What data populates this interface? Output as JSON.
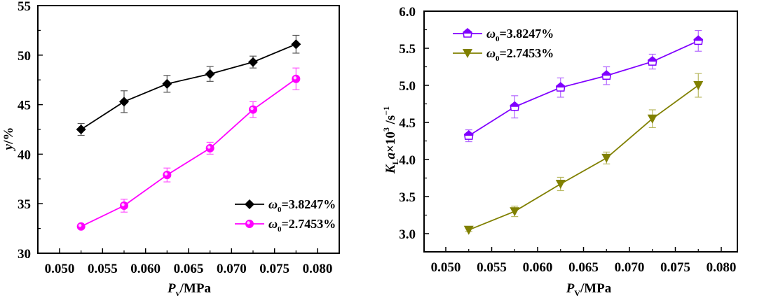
{
  "chart_data": [
    {
      "type": "line",
      "panel": "left",
      "title": "",
      "xlabel": "Pv/MPa",
      "xlabel_main": "P",
      "xlabel_sub": "v",
      "xlabel_rest": "/MPa",
      "ylabel": "y/%",
      "xlim": [
        0.0475,
        0.0825
      ],
      "ylim": [
        30,
        55
      ],
      "xticks": [
        0.05,
        0.055,
        0.06,
        0.065,
        0.07,
        0.075,
        0.08
      ],
      "xtick_labels": [
        "0.050",
        "0.055",
        "0.060",
        "0.065",
        "0.070",
        "0.075",
        "0.080"
      ],
      "yticks": [
        30,
        35,
        40,
        45,
        50,
        55
      ],
      "ytick_labels": [
        "30",
        "35",
        "40",
        "45",
        "50",
        "55"
      ],
      "grid": false,
      "legend_position": "bottom-right",
      "x": [
        0.0525,
        0.0575,
        0.0625,
        0.0675,
        0.0725,
        0.0775
      ],
      "series": [
        {
          "name": "ω0=3.8247%",
          "label_main": "ω",
          "label_sub": "0",
          "label_rest": "=3.8247%",
          "color": "#000000",
          "errcolor": "#555555",
          "marker": "diamond",
          "values": [
            42.5,
            45.3,
            47.1,
            48.1,
            49.3,
            51.1
          ],
          "errors": [
            0.6,
            1.1,
            0.85,
            0.75,
            0.6,
            0.9
          ]
        },
        {
          "name": "ω0=2.7453%",
          "label_main": "ω",
          "label_sub": "0",
          "label_rest": "=2.7453%",
          "color": "#ff00ff",
          "errcolor": "#ff55ff",
          "marker": "sphere",
          "values": [
            32.7,
            34.8,
            37.9,
            40.6,
            44.5,
            47.6
          ],
          "errors": [
            0.0,
            0.65,
            0.7,
            0.6,
            0.8,
            1.1
          ]
        }
      ]
    },
    {
      "type": "line",
      "panel": "right",
      "title": "",
      "xlabel": "PV/MPa",
      "xlabel_main": "P",
      "xlabel_sub": "V",
      "xlabel_rest": "/MPa",
      "ylabel": "KLa×10³/s⁻¹",
      "xlim": [
        0.0475,
        0.0825
      ],
      "ylim": [
        2.75,
        6.0
      ],
      "xticks": [
        0.05,
        0.055,
        0.06,
        0.065,
        0.07,
        0.075,
        0.08
      ],
      "xtick_labels": [
        "0.050",
        "0.055",
        "0.060",
        "0.065",
        "0.070",
        "0.075",
        "0.080"
      ],
      "yticks": [
        3.0,
        3.5,
        4.0,
        4.5,
        5.0,
        5.5,
        6.0
      ],
      "ytick_labels": [
        "3.0",
        "3.5",
        "4.0",
        "4.5",
        "5.0",
        "5.5",
        "6.0"
      ],
      "grid": false,
      "legend_position": "top-left",
      "x": [
        0.0525,
        0.0575,
        0.0625,
        0.0675,
        0.0725,
        0.0775
      ],
      "series": [
        {
          "name": "ω0=3.8247%",
          "label_main": "ω",
          "label_sub": "0",
          "label_rest": "=3.8247%",
          "color": "#8000ff",
          "errcolor": "#b266ff",
          "marker": "half-filled-pentagon",
          "values": [
            4.32,
            4.71,
            4.97,
            5.13,
            5.32,
            5.6
          ],
          "errors": [
            0.08,
            0.15,
            0.13,
            0.12,
            0.1,
            0.14
          ]
        },
        {
          "name": "ω0=2.7453%",
          "label_main": "ω",
          "label_sub": "0",
          "label_rest": "=2.7453%",
          "color": "#808000",
          "errcolor": "#b8b860",
          "marker": "triangle-down",
          "values": [
            3.05,
            3.3,
            3.67,
            4.02,
            4.55,
            5.0
          ],
          "errors": [
            0.02,
            0.07,
            0.09,
            0.08,
            0.12,
            0.16
          ]
        }
      ]
    }
  ]
}
